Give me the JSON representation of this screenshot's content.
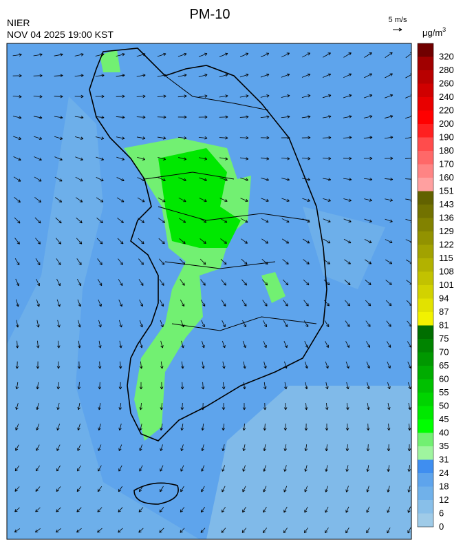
{
  "header": {
    "title": "PM-10",
    "agency": "NIER",
    "datetime": "NOV 04 2025 19:00 KST",
    "wind_scale": "5 m/s"
  },
  "legend": {
    "unit": "μg/m",
    "unit_exp": "3",
    "levels": [
      0,
      6,
      12,
      18,
      24,
      31,
      35,
      40,
      45,
      50,
      55,
      60,
      65,
      70,
      75,
      81,
      87,
      94,
      101,
      108,
      115,
      122,
      129,
      136,
      143,
      151,
      160,
      170,
      180,
      190,
      200,
      220,
      240,
      260,
      280,
      320
    ],
    "colors": [
      "#9fcbe8",
      "#88bfe9",
      "#70b1ea",
      "#5ea4ec",
      "#3f8ef0",
      "#9ff59f",
      "#72f072",
      "#00ff00",
      "#00e800",
      "#00d400",
      "#00c000",
      "#00ac00",
      "#009800",
      "#008400",
      "#006e00",
      "#f2f200",
      "#e2e200",
      "#d2d200",
      "#c2c200",
      "#b2b200",
      "#a2a200",
      "#929200",
      "#828200",
      "#727200",
      "#626200",
      "#ffa0a0",
      "#ff8484",
      "#ff6868",
      "#ff4c4c",
      "#ff2020",
      "#ff0000",
      "#e80000",
      "#d00000",
      "#b80000",
      "#a00000",
      "#700000"
    ]
  }
}
